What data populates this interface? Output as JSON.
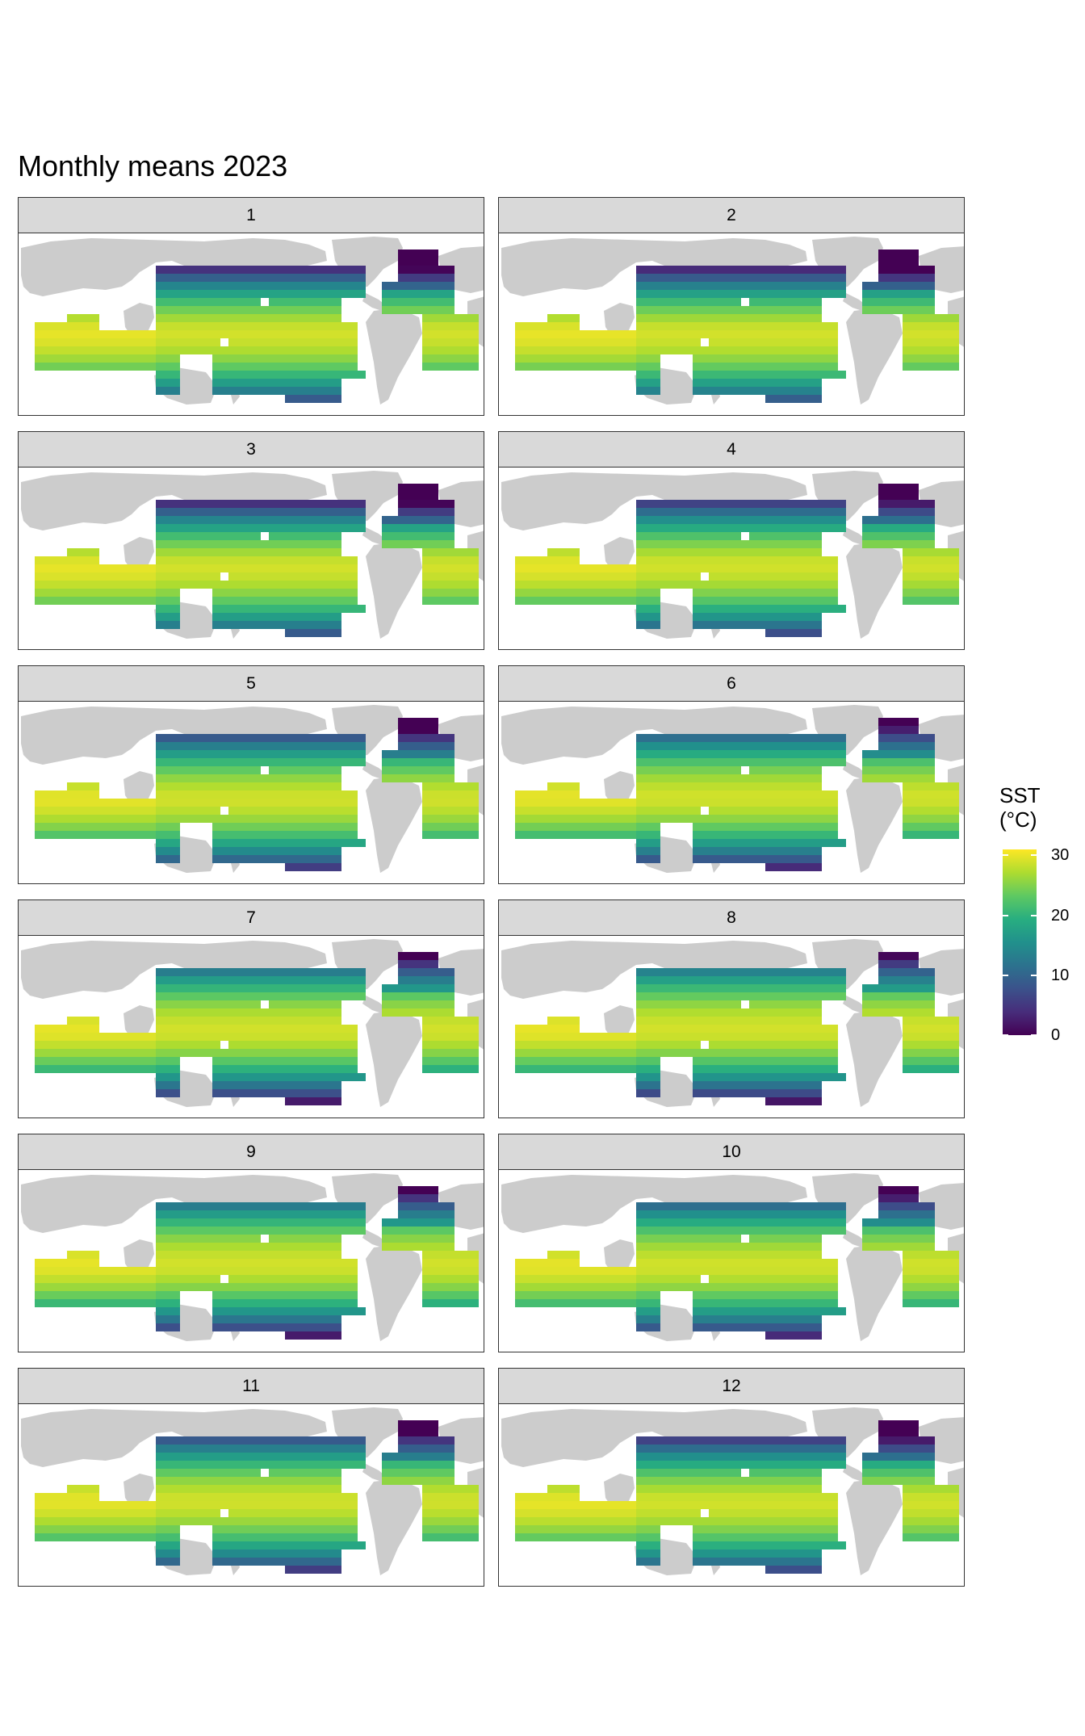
{
  "title": "Monthly means 2023",
  "legend": {
    "title_line1": "SST",
    "title_line2": "(°C)",
    "min": 0,
    "max": 31,
    "ticks": [
      {
        "value": 30,
        "label": "30"
      },
      {
        "value": 20,
        "label": "20"
      },
      {
        "value": 10,
        "label": "10"
      },
      {
        "value": 0,
        "label": "0"
      }
    ],
    "colors": [
      "#440154",
      "#472d7b",
      "#3b528b",
      "#2c728e",
      "#21918c",
      "#28ae80",
      "#5ec962",
      "#addc30",
      "#fde725"
    ]
  },
  "land_color": "#cccccc",
  "panels": [
    {
      "label": "1",
      "month": 1
    },
    {
      "label": "2",
      "month": 2
    },
    {
      "label": "3",
      "month": 3
    },
    {
      "label": "4",
      "month": 4
    },
    {
      "label": "5",
      "month": 5
    },
    {
      "label": "6",
      "month": 6
    },
    {
      "label": "7",
      "month": 7
    },
    {
      "label": "8",
      "month": 8
    },
    {
      "label": "9",
      "month": 9
    },
    {
      "label": "10",
      "month": 10
    },
    {
      "label": "11",
      "month": 11
    },
    {
      "label": "12",
      "month": 12
    }
  ]
}
